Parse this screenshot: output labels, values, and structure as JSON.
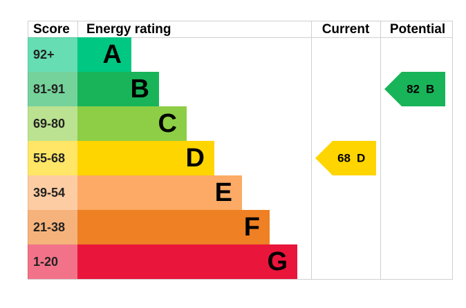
{
  "headers": [
    "Score",
    "Energy rating",
    "Current",
    "Potential"
  ],
  "bands": [
    {
      "range": "92+",
      "letter": "A",
      "color": "#00c781"
    },
    {
      "range": "81-91",
      "letter": "B",
      "color": "#19b459"
    },
    {
      "range": "69-80",
      "letter": "C",
      "color": "#8dce46"
    },
    {
      "range": "55-68",
      "letter": "D",
      "color": "#ffd500"
    },
    {
      "range": "39-54",
      "letter": "E",
      "color": "#fcaa65"
    },
    {
      "range": "21-38",
      "letter": "F",
      "color": "#ef8023"
    },
    {
      "range": "1-20",
      "letter": "G",
      "color": "#e9153b"
    }
  ],
  "current": {
    "value": 68,
    "letter": "D"
  },
  "potential": {
    "value": 82,
    "letter": "B"
  }
}
